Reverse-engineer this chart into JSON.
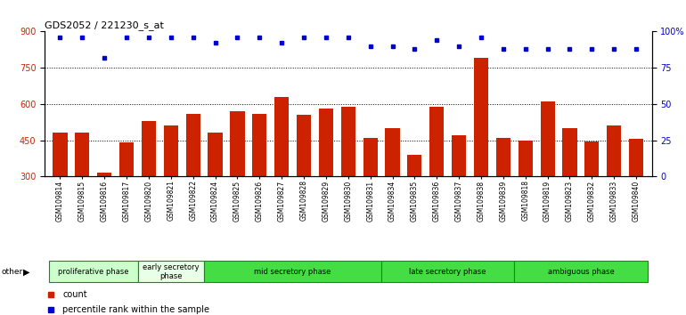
{
  "title": "GDS2052 / 221230_s_at",
  "samples": [
    "GSM109814",
    "GSM109815",
    "GSM109816",
    "GSM109817",
    "GSM109820",
    "GSM109821",
    "GSM109822",
    "GSM109824",
    "GSM109825",
    "GSM109826",
    "GSM109827",
    "GSM109828",
    "GSM109829",
    "GSM109830",
    "GSM109831",
    "GSM109834",
    "GSM109835",
    "GSM109836",
    "GSM109837",
    "GSM109838",
    "GSM109839",
    "GSM109818",
    "GSM109819",
    "GSM109823",
    "GSM109832",
    "GSM109833",
    "GSM109840"
  ],
  "counts": [
    480,
    480,
    315,
    440,
    530,
    510,
    560,
    480,
    570,
    560,
    630,
    555,
    580,
    590,
    460,
    500,
    390,
    590,
    470,
    790,
    460,
    450,
    610,
    500,
    445,
    510,
    455
  ],
  "percentile": [
    96,
    96,
    82,
    96,
    96,
    96,
    96,
    92,
    96,
    96,
    92,
    96,
    96,
    96,
    90,
    90,
    88,
    94,
    90,
    96,
    88,
    88,
    88,
    88,
    88,
    88,
    88
  ],
  "phases": [
    {
      "label": "proliferative phase",
      "start": 0,
      "end": 4,
      "color": "#ccffcc"
    },
    {
      "label": "early secretory\nphase",
      "start": 4,
      "end": 7,
      "color": "#e8ffe8"
    },
    {
      "label": "mid secretory phase",
      "start": 7,
      "end": 15,
      "color": "#44dd44"
    },
    {
      "label": "late secretory phase",
      "start": 15,
      "end": 21,
      "color": "#44dd44"
    },
    {
      "label": "ambiguous phase",
      "start": 21,
      "end": 27,
      "color": "#44dd44"
    }
  ],
  "bar_color": "#cc2200",
  "dot_color": "#0000cc",
  "ylim_left": [
    300,
    900
  ],
  "ylim_right": [
    0,
    100
  ],
  "yticks_left": [
    300,
    450,
    600,
    750,
    900
  ],
  "yticks_right": [
    0,
    25,
    50,
    75,
    100
  ],
  "yticklabels_right": [
    "0",
    "25",
    "50",
    "75",
    "100%"
  ],
  "bg_color": "#ffffff",
  "phase_border_color": "#009900",
  "grid_color": "black"
}
